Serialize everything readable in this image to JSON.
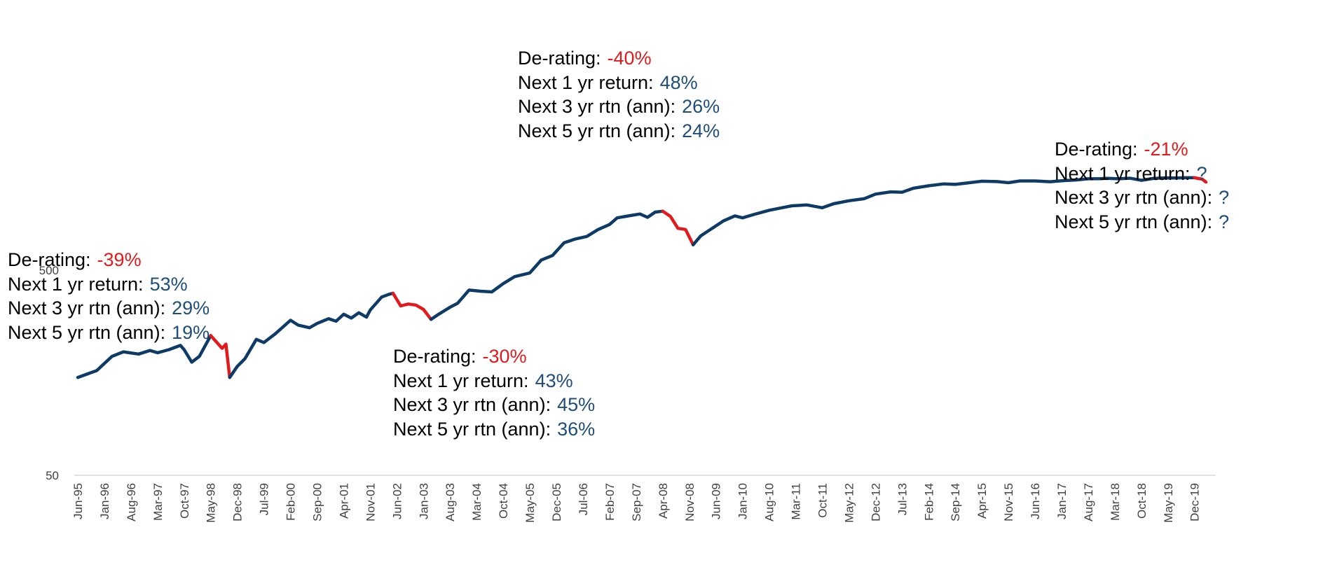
{
  "colors": {
    "line": "#0d3b66",
    "derating": "#e31a1c",
    "value": "#1f4e79",
    "axis": "#d9d9d9"
  },
  "chart_data": {
    "type": "line",
    "yscale": "log",
    "ylim": [
      50,
      1500
    ],
    "ytick_labels": [
      "50",
      "500"
    ],
    "x_tick_labels": [
      "Jun-95",
      "Jan-96",
      "Aug-96",
      "Mar-97",
      "Oct-97",
      "May-98",
      "Dec-98",
      "Jul-99",
      "Feb-00",
      "Sep-00",
      "Apr-01",
      "Nov-01",
      "Jun-02",
      "Jan-03",
      "Aug-03",
      "Mar-04",
      "Oct-04",
      "May-05",
      "Dec-05",
      "Jul-06",
      "Feb-07",
      "Sep-07",
      "Apr-08",
      "Nov-08",
      "Jun-09",
      "Jan-10",
      "Aug-10",
      "Mar-11",
      "Oct-11",
      "May-12",
      "Dec-12",
      "Jul-13",
      "Feb-14",
      "Sep-14",
      "Apr-15",
      "Nov-15",
      "Jun-16",
      "Jan-17",
      "Aug-17",
      "Mar-18",
      "Oct-18",
      "May-19",
      "Dec-19"
    ],
    "series": [
      {
        "points": [
          [
            "Jun-95",
            150
          ],
          [
            "Nov-95",
            162
          ],
          [
            "Mar-96",
            190
          ],
          [
            "Jun-96",
            200
          ],
          [
            "Oct-96",
            195
          ],
          [
            "Jan-97",
            203
          ],
          [
            "Mar-97",
            198
          ],
          [
            "Jun-97",
            205
          ],
          [
            "Sep-97",
            215
          ],
          [
            "Oct-97",
            205
          ],
          [
            "Dec-97",
            178
          ],
          [
            "Feb-98",
            190
          ],
          [
            "May-98",
            240
          ],
          [
            "Aug-98",
            208
          ],
          [
            "Sep-98",
            218
          ],
          [
            "Oct-98",
            150
          ],
          [
            "Dec-98",
            170
          ],
          [
            "Feb-99",
            185
          ],
          [
            "May-99",
            230
          ],
          [
            "Jul-99",
            222
          ],
          [
            "Oct-99",
            245
          ],
          [
            "Feb-00",
            285
          ],
          [
            "Apr-00",
            270
          ],
          [
            "Jul-00",
            262
          ],
          [
            "Sep-00",
            275
          ],
          [
            "Dec-00",
            290
          ],
          [
            "Feb-01",
            282
          ],
          [
            "Apr-01",
            305
          ],
          [
            "Jun-01",
            292
          ],
          [
            "Aug-01",
            310
          ],
          [
            "Oct-01",
            295
          ],
          [
            "Nov-01",
            320
          ],
          [
            "Feb-02",
            370
          ],
          [
            "Apr-02",
            382
          ],
          [
            "May-02",
            386
          ],
          [
            "Jul-02",
            335
          ],
          [
            "Sep-02",
            342
          ],
          [
            "Nov-02",
            338
          ],
          [
            "Jan-03",
            322
          ],
          [
            "Mar-03",
            288
          ],
          [
            "May-03",
            305
          ],
          [
            "Aug-03",
            330
          ],
          [
            "Oct-03",
            345
          ],
          [
            "Jan-04",
            400
          ],
          [
            "Apr-04",
            395
          ],
          [
            "Jul-04",
            392
          ],
          [
            "Oct-04",
            430
          ],
          [
            "Jan-05",
            465
          ],
          [
            "May-05",
            485
          ],
          [
            "Aug-05",
            560
          ],
          [
            "Nov-05",
            590
          ],
          [
            "Feb-06",
            680
          ],
          [
            "May-06",
            710
          ],
          [
            "Aug-06",
            730
          ],
          [
            "Nov-06",
            790
          ],
          [
            "Feb-07",
            835
          ],
          [
            "Apr-07",
            900
          ],
          [
            "Jul-07",
            920
          ],
          [
            "Oct-07",
            940
          ],
          [
            "Dec-07",
            905
          ],
          [
            "Feb-08",
            960
          ],
          [
            "Apr-08",
            970
          ],
          [
            "Jun-08",
            915
          ],
          [
            "Aug-08",
            800
          ],
          [
            "Oct-08",
            790
          ],
          [
            "Dec-08",
            665
          ],
          [
            "Feb-09",
            735
          ],
          [
            "May-09",
            800
          ],
          [
            "Aug-09",
            870
          ],
          [
            "Nov-09",
            920
          ],
          [
            "Jan-10",
            900
          ],
          [
            "Apr-10",
            935
          ],
          [
            "Aug-10",
            980
          ],
          [
            "Nov-10",
            1005
          ],
          [
            "Feb-11",
            1030
          ],
          [
            "Jun-11",
            1040
          ],
          [
            "Oct-11",
            1008
          ],
          [
            "Jan-12",
            1055
          ],
          [
            "May-12",
            1090
          ],
          [
            "Sep-12",
            1115
          ],
          [
            "Dec-12",
            1175
          ],
          [
            "Apr-13",
            1205
          ],
          [
            "Jul-13",
            1200
          ],
          [
            "Oct-13",
            1255
          ],
          [
            "Feb-14",
            1290
          ],
          [
            "Jun-14",
            1318
          ],
          [
            "Sep-14",
            1310
          ],
          [
            "Dec-14",
            1330
          ],
          [
            "Apr-15",
            1358
          ],
          [
            "Aug-15",
            1352
          ],
          [
            "Nov-15",
            1335
          ],
          [
            "Feb-16",
            1362
          ],
          [
            "Jun-16",
            1362
          ],
          [
            "Oct-16",
            1350
          ],
          [
            "Jan-17",
            1365
          ],
          [
            "May-17",
            1378
          ],
          [
            "Aug-17",
            1395
          ],
          [
            "Nov-17",
            1398
          ],
          [
            "Jan-18",
            1402
          ],
          [
            "Apr-18",
            1395
          ],
          [
            "Jul-18",
            1404
          ],
          [
            "Oct-18",
            1372
          ],
          [
            "Jan-19",
            1400
          ],
          [
            "Apr-19",
            1410
          ],
          [
            "Jul-19",
            1408
          ],
          [
            "Oct-19",
            1412
          ],
          [
            "Dec-19",
            1412
          ],
          [
            "Jan-20",
            1400
          ],
          [
            "Feb-20",
            1390
          ],
          [
            "Mar-20",
            1345
          ]
        ],
        "derating_ranges": [
          [
            "May-98",
            "Oct-98"
          ],
          [
            "May-02",
            "Mar-03"
          ],
          [
            "Apr-08",
            "Dec-08"
          ],
          [
            "Dec-19",
            "Mar-20"
          ]
        ]
      }
    ],
    "annotations": [
      {
        "derating_label": "De-rating:",
        "derating": "-39%",
        "r1_label": "Next 1 yr return:",
        "r1": "53%",
        "r3_label": "Next 3 yr rtn (ann):",
        "r3": "29%",
        "r5_label": "Next 5 yr rtn (ann):",
        "r5": "19%"
      },
      {
        "derating_label": "De-rating:",
        "derating": "-30%",
        "r1_label": "Next 1 yr return:",
        "r1": "43%",
        "r3_label": "Next 3 yr rtn (ann):",
        "r3": "45%",
        "r5_label": "Next 5 yr rtn (ann):",
        "r5": "36%"
      },
      {
        "derating_label": "De-rating:",
        "derating": "-40%",
        "r1_label": "Next 1 yr return:",
        "r1": "48%",
        "r3_label": "Next 3 yr rtn (ann):",
        "r3": "26%",
        "r5_label": "Next 5 yr rtn (ann):",
        "r5": "24%"
      },
      {
        "derating_label": "De-rating:",
        "derating": "-21%",
        "r1_label": "Next 1 yr return:",
        "r1": "?",
        "r3_label": "Next 3 yr rtn (ann):",
        "r3": "?",
        "r5_label": "Next 5 yr rtn (ann):",
        "r5": "?"
      }
    ]
  }
}
